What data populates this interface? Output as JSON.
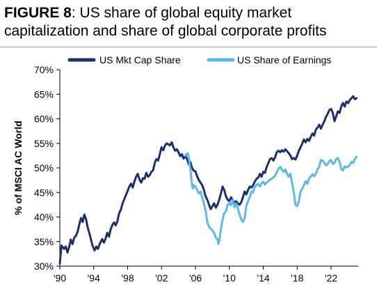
{
  "figure": {
    "label": "FIGURE 8",
    "title": ": US share of global equity market capitalization and share of global corporate profits"
  },
  "colors": {
    "mktcap": "#1b2f6e",
    "earnings": "#5bb8ea",
    "axis": "#000000"
  },
  "chart_data": {
    "type": "line",
    "title": "FIGURE 8: US share of global equity market capitalization and share of global corporate profits",
    "ylabel": "% of MSCI AC World",
    "xlabel": "",
    "ylim": [
      30,
      70
    ],
    "xlim": [
      1990,
      2025.2
    ],
    "yticks": [
      "30%",
      "35%",
      "40%",
      "45%",
      "50%",
      "55%",
      "60%",
      "65%",
      "70%"
    ],
    "ytick_values": [
      30,
      35,
      40,
      45,
      50,
      55,
      60,
      65,
      70
    ],
    "xticks": [
      "'90",
      "'94",
      "'98",
      "'02",
      "'06",
      "'10",
      "'14",
      "'18",
      "'22"
    ],
    "xtick_values": [
      1990,
      1994,
      1998,
      2002,
      2006,
      2010,
      2014,
      2018,
      2022
    ],
    "grid": false,
    "legend": "top",
    "series": [
      {
        "name": "US Mkt Cap Share",
        "points": [
          [
            1990.0,
            30.5
          ],
          [
            1990.2,
            34.2
          ],
          [
            1990.5,
            33.5
          ],
          [
            1990.7,
            34.0
          ],
          [
            1990.9,
            32.8
          ],
          [
            1991.1,
            33.9
          ],
          [
            1991.3,
            35.4
          ],
          [
            1991.5,
            34.5
          ],
          [
            1991.7,
            35.8
          ],
          [
            1991.9,
            36.2
          ],
          [
            1992.1,
            37.0
          ],
          [
            1992.3,
            38.5
          ],
          [
            1992.5,
            39.8
          ],
          [
            1992.7,
            39.0
          ],
          [
            1992.9,
            40.5
          ],
          [
            1993.1,
            39.5
          ],
          [
            1993.3,
            37.8
          ],
          [
            1993.5,
            36.6
          ],
          [
            1993.7,
            35.2
          ],
          [
            1993.9,
            34.0
          ],
          [
            1994.1,
            33.2
          ],
          [
            1994.3,
            34.0
          ],
          [
            1994.5,
            33.5
          ],
          [
            1994.7,
            34.5
          ],
          [
            1995.0,
            35.5
          ],
          [
            1995.2,
            34.8
          ],
          [
            1995.4,
            35.6
          ],
          [
            1995.6,
            36.8
          ],
          [
            1995.8,
            36.0
          ],
          [
            1996.0,
            37.5
          ],
          [
            1996.2,
            38.4
          ],
          [
            1996.4,
            38.9
          ],
          [
            1996.6,
            38.3
          ],
          [
            1996.8,
            39.2
          ],
          [
            1997.0,
            40.8
          ],
          [
            1997.2,
            41.5
          ],
          [
            1997.4,
            42.8
          ],
          [
            1997.6,
            43.6
          ],
          [
            1997.8,
            44.5
          ],
          [
            1998.0,
            45.3
          ],
          [
            1998.2,
            46.2
          ],
          [
            1998.4,
            46.8
          ],
          [
            1998.6,
            46.0
          ],
          [
            1998.8,
            47.2
          ],
          [
            1999.0,
            48.2
          ],
          [
            1999.2,
            48.8
          ],
          [
            1999.4,
            47.6
          ],
          [
            1999.6,
            47.0
          ],
          [
            1999.8,
            47.9
          ],
          [
            2000.0,
            47.8
          ],
          [
            2000.2,
            49.0
          ],
          [
            2000.4,
            48.2
          ],
          [
            2000.6,
            48.5
          ],
          [
            2000.8,
            49.2
          ],
          [
            2001.0,
            49.5
          ],
          [
            2001.2,
            51.0
          ],
          [
            2001.4,
            51.8
          ],
          [
            2001.6,
            51.5
          ],
          [
            2001.8,
            52.8
          ],
          [
            2002.0,
            54.2
          ],
          [
            2002.2,
            53.6
          ],
          [
            2002.4,
            54.5
          ],
          [
            2002.6,
            55.0
          ],
          [
            2002.8,
            54.8
          ],
          [
            2003.0,
            54.6
          ],
          [
            2003.2,
            55.2
          ],
          [
            2003.4,
            54.2
          ],
          [
            2003.6,
            53.5
          ],
          [
            2003.8,
            53.8
          ],
          [
            2004.0,
            53.2
          ],
          [
            2004.2,
            52.4
          ],
          [
            2004.4,
            52.8
          ],
          [
            2004.6,
            51.9
          ],
          [
            2004.8,
            52.4
          ],
          [
            2005.0,
            51.8
          ],
          [
            2005.2,
            50.8
          ],
          [
            2005.4,
            51.2
          ],
          [
            2005.6,
            50.0
          ],
          [
            2005.8,
            49.4
          ],
          [
            2006.0,
            49.3
          ],
          [
            2006.2,
            48.3
          ],
          [
            2006.4,
            47.5
          ],
          [
            2006.6,
            47.0
          ],
          [
            2006.8,
            46.5
          ],
          [
            2007.0,
            45.5
          ],
          [
            2007.2,
            44.2
          ],
          [
            2007.4,
            43.5
          ],
          [
            2007.6,
            42.5
          ],
          [
            2007.8,
            41.6
          ],
          [
            2008.0,
            42.2
          ],
          [
            2008.2,
            42.8
          ],
          [
            2008.4,
            41.9
          ],
          [
            2008.6,
            42.5
          ],
          [
            2008.8,
            43.5
          ],
          [
            2009.0,
            44.8
          ],
          [
            2009.2,
            46.2
          ],
          [
            2009.4,
            45.5
          ],
          [
            2009.6,
            44.2
          ],
          [
            2009.8,
            43.5
          ],
          [
            2010.0,
            43.2
          ],
          [
            2010.2,
            44.0
          ],
          [
            2010.4,
            43.5
          ],
          [
            2010.6,
            43.0
          ],
          [
            2010.8,
            43.2
          ],
          [
            2011.0,
            42.8
          ],
          [
            2011.2,
            42.5
          ],
          [
            2011.4,
            43.0
          ],
          [
            2011.6,
            44.0
          ],
          [
            2011.8,
            45.2
          ],
          [
            2012.0,
            44.6
          ],
          [
            2012.2,
            45.5
          ],
          [
            2012.4,
            46.2
          ],
          [
            2012.6,
            46.0
          ],
          [
            2012.8,
            46.5
          ],
          [
            2013.0,
            47.2
          ],
          [
            2013.2,
            47.8
          ],
          [
            2013.4,
            48.0
          ],
          [
            2013.6,
            48.8
          ],
          [
            2013.8,
            48.2
          ],
          [
            2014.0,
            49.2
          ],
          [
            2014.2,
            49.0
          ],
          [
            2014.4,
            50.2
          ],
          [
            2014.6,
            51.0
          ],
          [
            2014.8,
            51.8
          ],
          [
            2015.0,
            52.0
          ],
          [
            2015.2,
            51.5
          ],
          [
            2015.4,
            52.2
          ],
          [
            2015.6,
            53.2
          ],
          [
            2015.8,
            53.5
          ],
          [
            2016.0,
            53.2
          ],
          [
            2016.2,
            53.6
          ],
          [
            2016.4,
            53.3
          ],
          [
            2016.6,
            53.8
          ],
          [
            2016.8,
            53.4
          ],
          [
            2017.0,
            53.0
          ],
          [
            2017.2,
            52.5
          ],
          [
            2017.4,
            51.8
          ],
          [
            2017.6,
            52.0
          ],
          [
            2017.8,
            51.7
          ],
          [
            2018.0,
            52.5
          ],
          [
            2018.2,
            53.5
          ],
          [
            2018.4,
            54.2
          ],
          [
            2018.6,
            55.0
          ],
          [
            2018.8,
            55.8
          ],
          [
            2019.0,
            55.2
          ],
          [
            2019.2,
            55.9
          ],
          [
            2019.4,
            55.5
          ],
          [
            2019.6,
            56.3
          ],
          [
            2019.8,
            57.0
          ],
          [
            2020.0,
            56.6
          ],
          [
            2020.2,
            57.8
          ],
          [
            2020.4,
            58.2
          ],
          [
            2020.6,
            58.8
          ],
          [
            2020.8,
            58.0
          ],
          [
            2021.0,
            58.8
          ],
          [
            2021.2,
            59.5
          ],
          [
            2021.4,
            60.4
          ],
          [
            2021.6,
            61.0
          ],
          [
            2021.8,
            61.8
          ],
          [
            2022.0,
            62.0
          ],
          [
            2022.2,
            61.2
          ],
          [
            2022.4,
            59.5
          ],
          [
            2022.6,
            60.5
          ],
          [
            2022.8,
            61.5
          ],
          [
            2023.0,
            61.2
          ],
          [
            2023.2,
            62.5
          ],
          [
            2023.4,
            63.2
          ],
          [
            2023.6,
            62.5
          ],
          [
            2023.8,
            63.5
          ],
          [
            2024.0,
            63.2
          ],
          [
            2024.2,
            63.8
          ],
          [
            2024.4,
            64.2
          ],
          [
            2024.6,
            64.6
          ],
          [
            2024.8,
            64.0
          ],
          [
            2025.0,
            64.2
          ]
        ]
      },
      {
        "name": "US Share of Earnings",
        "points": [
          [
            2004.8,
            52.5
          ],
          [
            2004.9,
            52.8
          ],
          [
            2005.0,
            52.6
          ],
          [
            2005.1,
            53.0
          ],
          [
            2005.2,
            52.2
          ],
          [
            2005.3,
            51.0
          ],
          [
            2005.4,
            49.8
          ],
          [
            2005.5,
            48.2
          ],
          [
            2005.6,
            46.5
          ],
          [
            2005.7,
            45.8
          ],
          [
            2005.8,
            46.5
          ],
          [
            2006.0,
            46.2
          ],
          [
            2006.2,
            45.5
          ],
          [
            2006.4,
            44.8
          ],
          [
            2006.6,
            45.2
          ],
          [
            2006.8,
            44.0
          ],
          [
            2007.0,
            42.8
          ],
          [
            2007.2,
            41.2
          ],
          [
            2007.4,
            39.0
          ],
          [
            2007.6,
            38.0
          ],
          [
            2007.8,
            37.6
          ],
          [
            2008.0,
            37.3
          ],
          [
            2008.2,
            36.8
          ],
          [
            2008.4,
            35.8
          ],
          [
            2008.6,
            35.5
          ],
          [
            2008.7,
            34.5
          ],
          [
            2008.8,
            35.0
          ],
          [
            2009.0,
            37.5
          ],
          [
            2009.2,
            39.5
          ],
          [
            2009.4,
            40.8
          ],
          [
            2009.6,
            41.2
          ],
          [
            2009.8,
            42.4
          ],
          [
            2010.0,
            43.0
          ],
          [
            2010.2,
            42.4
          ],
          [
            2010.4,
            43.5
          ],
          [
            2010.6,
            42.0
          ],
          [
            2010.8,
            42.8
          ],
          [
            2011.0,
            41.8
          ],
          [
            2011.2,
            40.5
          ],
          [
            2011.4,
            39.5
          ],
          [
            2011.6,
            39.0
          ],
          [
            2011.8,
            39.8
          ],
          [
            2012.0,
            42.2
          ],
          [
            2012.2,
            43.2
          ],
          [
            2012.4,
            44.0
          ],
          [
            2012.6,
            45.2
          ],
          [
            2012.8,
            45.0
          ],
          [
            2013.0,
            46.2
          ],
          [
            2013.2,
            46.5
          ],
          [
            2013.4,
            46.8
          ],
          [
            2013.6,
            46.2
          ],
          [
            2013.8,
            46.9
          ],
          [
            2014.0,
            47.2
          ],
          [
            2014.2,
            46.6
          ],
          [
            2014.4,
            47.0
          ],
          [
            2014.6,
            47.3
          ],
          [
            2014.8,
            47.6
          ],
          [
            2015.0,
            47.8
          ],
          [
            2015.2,
            48.1
          ],
          [
            2015.4,
            48.4
          ],
          [
            2015.6,
            49.2
          ],
          [
            2015.8,
            49.8
          ],
          [
            2016.0,
            50.2
          ],
          [
            2016.2,
            49.6
          ],
          [
            2016.4,
            49.2
          ],
          [
            2016.6,
            49.7
          ],
          [
            2016.8,
            48.8
          ],
          [
            2017.0,
            48.2
          ],
          [
            2017.2,
            48.8
          ],
          [
            2017.4,
            47.0
          ],
          [
            2017.6,
            45.0
          ],
          [
            2017.8,
            42.5
          ],
          [
            2018.0,
            42.2
          ],
          [
            2018.2,
            43.2
          ],
          [
            2018.4,
            45.2
          ],
          [
            2018.6,
            45.8
          ],
          [
            2018.8,
            46.5
          ],
          [
            2019.0,
            47.3
          ],
          [
            2019.2,
            46.8
          ],
          [
            2019.4,
            47.8
          ],
          [
            2019.6,
            48.2
          ],
          [
            2019.8,
            48.7
          ],
          [
            2020.0,
            48.3
          ],
          [
            2020.2,
            48.8
          ],
          [
            2020.4,
            49.7
          ],
          [
            2020.6,
            50.2
          ],
          [
            2020.8,
            51.6
          ],
          [
            2021.0,
            51.5
          ],
          [
            2021.2,
            51.0
          ],
          [
            2021.4,
            50.5
          ],
          [
            2021.6,
            50.8
          ],
          [
            2021.8,
            51.4
          ],
          [
            2022.0,
            51.6
          ],
          [
            2022.2,
            50.8
          ],
          [
            2022.4,
            51.0
          ],
          [
            2022.6,
            51.8
          ],
          [
            2022.8,
            52.0
          ],
          [
            2023.0,
            51.2
          ],
          [
            2023.2,
            49.8
          ],
          [
            2023.4,
            49.5
          ],
          [
            2023.6,
            50.3
          ],
          [
            2023.8,
            50.1
          ],
          [
            2024.0,
            50.3
          ],
          [
            2024.2,
            50.6
          ],
          [
            2024.4,
            51.2
          ],
          [
            2024.6,
            51.0
          ],
          [
            2024.8,
            51.8
          ],
          [
            2025.0,
            52.3
          ]
        ]
      }
    ]
  }
}
